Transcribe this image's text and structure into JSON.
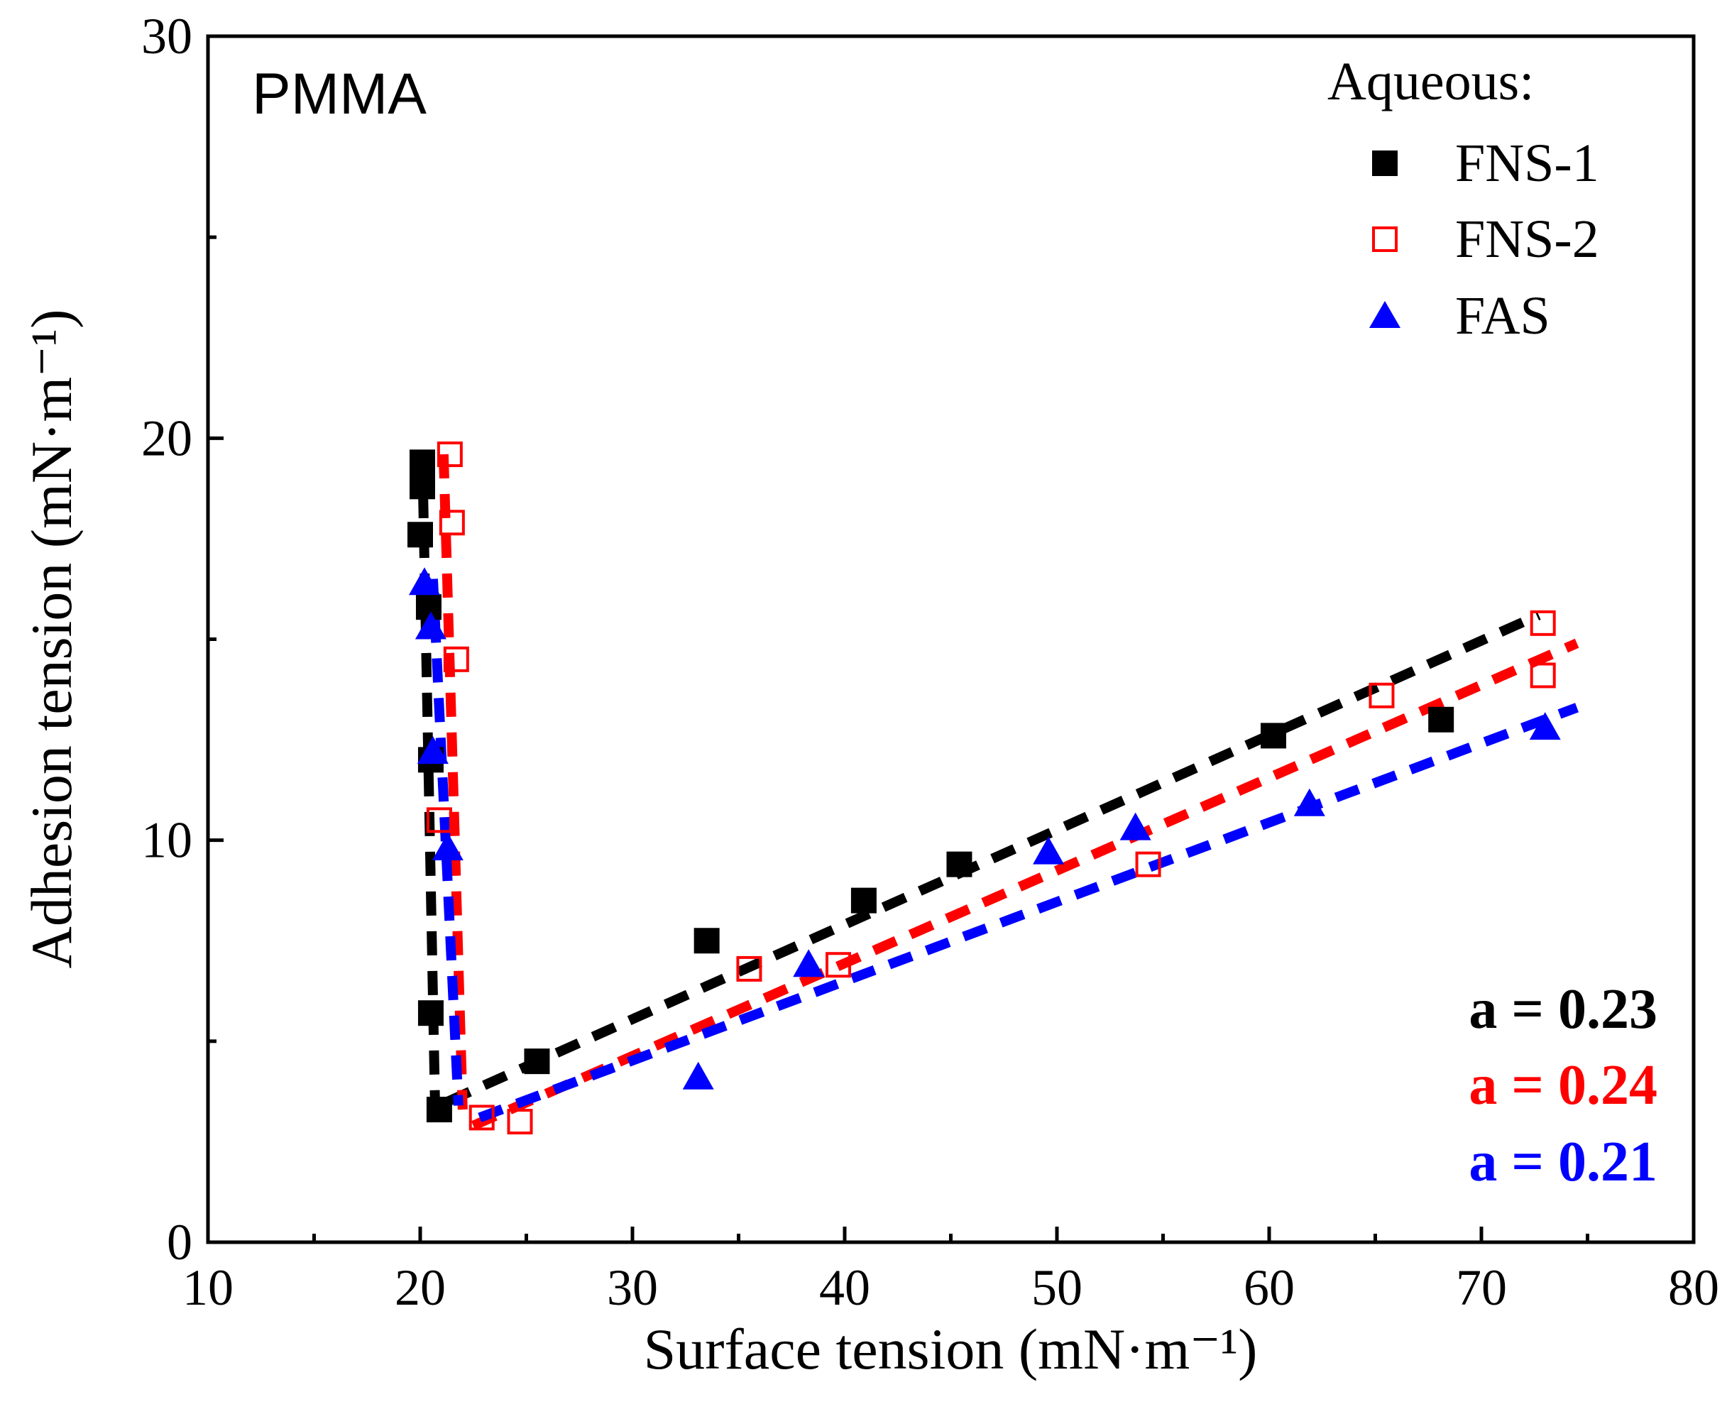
{
  "chart_data": {
    "type": "scatter",
    "title": "PMMA",
    "xlabel": "Surface tension (mN·m⁻¹)",
    "ylabel": "Adhesion tension (mN·m⁻¹)",
    "xlim": [
      10,
      80
    ],
    "ylim": [
      0,
      30
    ],
    "xticks": [
      10,
      20,
      30,
      40,
      50,
      60,
      70,
      80
    ],
    "yticks": [
      0,
      10,
      20,
      30
    ],
    "grid": false,
    "legend": {
      "title": "Aqueous:",
      "placement": "top-right"
    },
    "series": [
      {
        "name": "FNS-1",
        "marker": "filled-square",
        "color": "#000000",
        "points": [
          [
            20.1,
            19.4
          ],
          [
            20.1,
            18.8
          ],
          [
            20.0,
            17.6
          ],
          [
            20.4,
            15.8
          ],
          [
            20.5,
            12.0
          ],
          [
            20.5,
            5.7
          ],
          [
            20.9,
            3.3
          ],
          [
            25.5,
            4.5
          ],
          [
            33.5,
            7.5
          ],
          [
            40.9,
            8.5
          ],
          [
            45.4,
            9.4
          ],
          [
            60.2,
            12.6
          ],
          [
            68.1,
            13.0
          ]
        ],
        "fit": [
          [
            [
              20.1,
              19.6
            ],
            [
              20.7,
              3.4
            ]
          ],
          [
            [
              21.3,
              3.5
            ],
            [
              72.7,
              15.6
            ]
          ]
        ]
      },
      {
        "name": "FNS-2",
        "marker": "open-square",
        "color": "#ff0000",
        "points": [
          [
            21.4,
            19.6
          ],
          [
            21.5,
            17.9
          ],
          [
            21.7,
            14.5
          ],
          [
            20.9,
            10.5
          ],
          [
            22.9,
            3.1
          ],
          [
            24.7,
            3.0
          ],
          [
            35.5,
            6.8
          ],
          [
            39.7,
            6.9
          ],
          [
            54.3,
            9.4
          ],
          [
            65.3,
            13.6
          ],
          [
            72.9,
            15.4
          ],
          [
            72.9,
            14.1
          ]
        ],
        "fit": [
          [
            [
              21.1,
              19.6
            ],
            [
              22.0,
              3.3
            ]
          ],
          [
            [
              22.5,
              2.9
            ],
            [
              74.5,
              14.9
            ]
          ]
        ]
      },
      {
        "name": "FAS",
        "marker": "filled-triangle",
        "color": "#0000ff",
        "points": [
          [
            20.2,
            16.4
          ],
          [
            20.5,
            15.3
          ],
          [
            20.6,
            12.2
          ],
          [
            21.3,
            9.8
          ],
          [
            33.1,
            4.1
          ],
          [
            38.3,
            6.9
          ],
          [
            49.6,
            9.7
          ],
          [
            53.7,
            10.3
          ],
          [
            61.9,
            10.9
          ],
          [
            73.0,
            12.8
          ]
        ],
        "fit": [
          [
            [
              20.6,
              16.5
            ],
            [
              21.8,
              3.4
            ]
          ],
          [
            [
              22.8,
              3.1
            ],
            [
              74.5,
              13.3
            ]
          ]
        ]
      }
    ],
    "annotations": [
      "a = 0.23",
      "a = 0.24",
      "a = 0.21"
    ]
  }
}
